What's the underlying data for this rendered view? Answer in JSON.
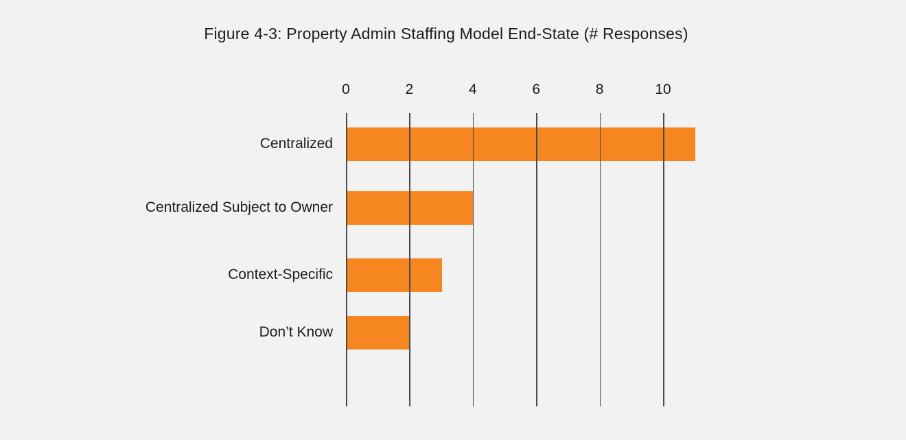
{
  "page": {
    "background_color": "#f2f2f2"
  },
  "chart_data": {
    "type": "bar",
    "orientation": "horizontal",
    "title": "Figure 4-3: Property Admin Staffing Model End-State (# Responses)",
    "categories": [
      "Centralized",
      "Centralized Subject to Owner",
      "Context-Specific",
      "Don’t Know"
    ],
    "values": [
      11,
      4,
      3,
      2
    ],
    "xlabel": "",
    "ylabel": "",
    "xticks": [
      0,
      2,
      4,
      6,
      8,
      10
    ],
    "xlim": [
      0,
      11.7
    ],
    "x_axis_position": "top",
    "grid": true,
    "legend": false,
    "bar_color": "#f68620",
    "gridline_color": "#4a4a4a",
    "text_color": "#1c1c1c"
  }
}
